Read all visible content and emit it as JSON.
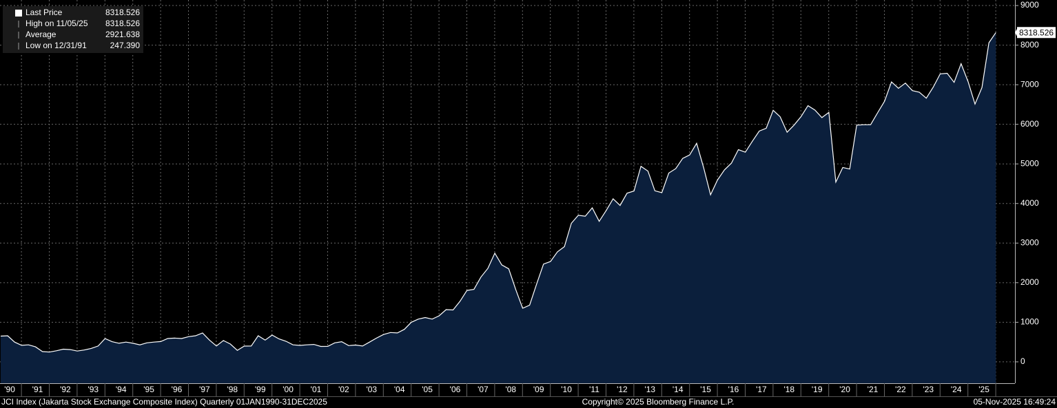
{
  "chart_data": {
    "type": "area",
    "categories": [
      null,
      "'90",
      null,
      null,
      null,
      "'91",
      null,
      null,
      null,
      "'92",
      null,
      null,
      null,
      "'93",
      null,
      null,
      null,
      "'94",
      null,
      null,
      null,
      "'95",
      null,
      null,
      null,
      "'96",
      null,
      null,
      null,
      "'97",
      null,
      null,
      null,
      "'98",
      null,
      null,
      null,
      "'99",
      null,
      null,
      null,
      "'00",
      null,
      null,
      null,
      "'01",
      null,
      null,
      null,
      "'02",
      null,
      null,
      null,
      "'03",
      null,
      null,
      null,
      "'04",
      null,
      null,
      null,
      "'05",
      null,
      null,
      null,
      "'06",
      null,
      null,
      null,
      "'07",
      null,
      null,
      null,
      "'08",
      null,
      null,
      null,
      "'09",
      null,
      null,
      null,
      "'10",
      null,
      null,
      null,
      "'11",
      null,
      null,
      null,
      "'12",
      null,
      null,
      null,
      "'13",
      null,
      null,
      null,
      "'14",
      null,
      null,
      null,
      "'15",
      null,
      null,
      null,
      "'16",
      null,
      null,
      null,
      "'17",
      null,
      null,
      null,
      "'18",
      null,
      null,
      null,
      "'19",
      null,
      null,
      null,
      "'20",
      null,
      null,
      null,
      "'21",
      null,
      null,
      null,
      "'22",
      null,
      null,
      null,
      "'23",
      null,
      null,
      null,
      "'24",
      null,
      null,
      null,
      "'25",
      null,
      null
    ],
    "values": [
      650,
      660,
      500,
      417,
      430,
      380,
      260,
      247,
      280,
      320,
      310,
      274,
      300,
      340,
      400,
      588,
      510,
      470,
      500,
      469,
      430,
      480,
      500,
      513,
      590,
      600,
      590,
      637,
      660,
      730,
      550,
      401,
      540,
      450,
      290,
      398,
      400,
      660,
      550,
      676,
      580,
      520,
      430,
      416,
      430,
      440,
      390,
      392,
      480,
      510,
      410,
      424,
      400,
      500,
      600,
      691,
      740,
      730,
      820,
      1000,
      1080,
      1120,
      1080,
      1163,
      1320,
      1310,
      1530,
      1805,
      1830,
      2140,
      2360,
      2745,
      2450,
      2350,
      1830,
      1355,
      1430,
      1960,
      2470,
      2534,
      2780,
      2910,
      3500,
      3703,
      3680,
      3890,
      3550,
      3821,
      4120,
      3950,
      4260,
      4316,
      4940,
      4820,
      4320,
      4274,
      4770,
      4880,
      5140,
      5227,
      5520,
      4910,
      4220,
      4593,
      4850,
      5020,
      5360,
      5296,
      5570,
      5830,
      5900,
      6355,
      6190,
      5800,
      5980,
      6194,
      6470,
      6360,
      6170,
      6300,
      4540,
      4910,
      4870,
      5979,
      5990,
      5990,
      6290,
      6581,
      7070,
      6910,
      7040,
      6851,
      6810,
      6660,
      6940,
      7273,
      7290,
      7060,
      7530,
      7080,
      6510,
      6930,
      8060,
      8318.526
    ],
    "color": "#0b1f3c",
    "line_color": "#ffffff",
    "ylim": [
      -540,
      9140
    ],
    "yticks": [
      0,
      1000,
      2000,
      3000,
      4000,
      5000,
      6000,
      7000,
      8000,
      9000
    ],
    "grid": true,
    "legend": [
      {
        "name": "Last Price",
        "value": 8318.526
      },
      {
        "name": "High on 11/05/25",
        "value": 8318.526
      },
      {
        "name": "Average",
        "value": 2921.638
      },
      {
        "name": "Low on 12/31/91",
        "value": {
          "value": 247.39,
          "label": "247.390"
        }
      }
    ],
    "footer_left": "JCI Index (Jakarta Stock Exchange Composite Index) Quarterly 01JAN1990-31DEC2025",
    "footer_center": "Copyright© 2025 Bloomberg Finance L.P.",
    "footer_right": "05-Nov-2025 16:49:24"
  }
}
